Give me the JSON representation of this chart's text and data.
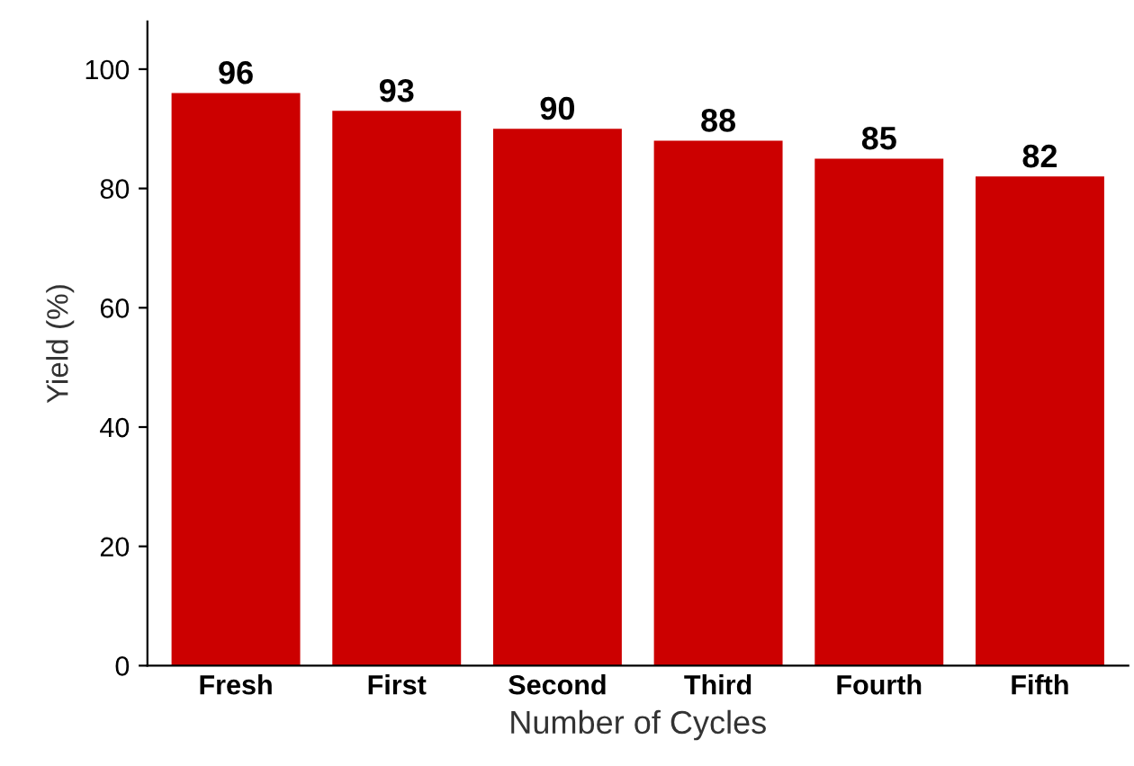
{
  "chart_data": {
    "type": "bar",
    "xlabel": "Number of Cycles",
    "ylabel": "Yield (%)",
    "categories": [
      "Fresh",
      "First",
      "Second",
      "Third",
      "Fourth",
      "Fifth"
    ],
    "values": [
      96,
      93,
      90,
      88,
      85,
      82
    ],
    "color": "#cc0000",
    "ylim": [
      0,
      108
    ],
    "yticks": [
      0,
      20,
      40,
      60,
      80,
      100
    ],
    "grid": false,
    "data_labels": true
  }
}
